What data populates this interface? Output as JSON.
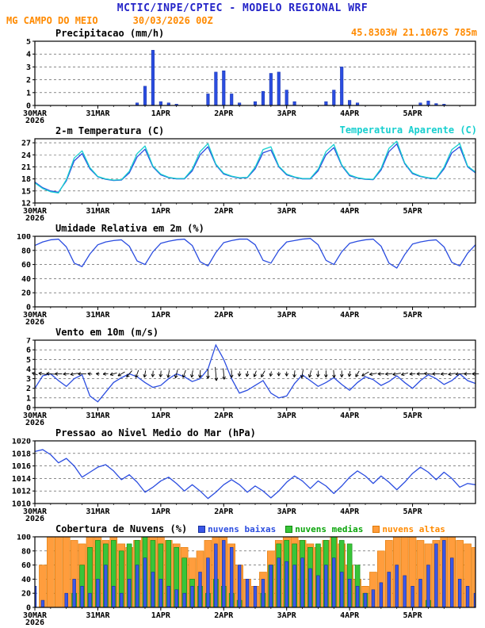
{
  "header": {
    "title": "MCTIC/INPE/CPTEC - MODELO REGIONAL WRF",
    "station": "MG CAMPO DO MEIO",
    "run": "30/03/2026 00Z",
    "location": "45.8303W 21.1067S 785m"
  },
  "colors": {
    "header_blue": "#2424c8",
    "orange": "#ff8a00",
    "blue": "#2b4de0",
    "blue_dark": "#1531a8",
    "cyan": "#17cfcf",
    "green_text": "#0aa50a",
    "low_fill": "#3a57e8",
    "low_stroke": "#16309c",
    "mid_fill": "#39c439",
    "mid_stroke": "#0d8a0d",
    "high_fill": "#ff9d3d",
    "high_stroke": "#e07800"
  },
  "x_axis": {
    "hours_total": 168,
    "step": 3,
    "ticks": [
      {
        "h": 0,
        "label": "30MAR",
        "sub": "2026"
      },
      {
        "h": 24,
        "label": "31MAR"
      },
      {
        "h": 48,
        "label": "1APR"
      },
      {
        "h": 72,
        "label": "2APR"
      },
      {
        "h": 96,
        "label": "3APR"
      },
      {
        "h": 120,
        "label": "4APR"
      },
      {
        "h": 144,
        "label": "5APR"
      }
    ]
  },
  "chart_data": [
    {
      "type": "bar",
      "title": "Precipitacao (mm/h)",
      "ylim": [
        0,
        5
      ],
      "yticks": [
        0,
        1,
        2,
        3,
        4,
        5
      ],
      "values": [
        0,
        0,
        0,
        0,
        0,
        0,
        0,
        0,
        0,
        0,
        0,
        0,
        0,
        0.2,
        1.5,
        4.3,
        0.3,
        0.2,
        0.1,
        0,
        0,
        0,
        0.9,
        2.6,
        2.7,
        0.9,
        0.2,
        0,
        0.3,
        1.1,
        2.5,
        2.6,
        1.2,
        0.3,
        0,
        0,
        0,
        0.3,
        1.2,
        3.0,
        0.4,
        0.2,
        0,
        0,
        0,
        0,
        0,
        0,
        0,
        0.2,
        0.35,
        0.15,
        0.1,
        0,
        0,
        0,
        0
      ]
    },
    {
      "type": "line",
      "title": "2-m Temperatura (C)",
      "ylim": [
        12,
        28
      ],
      "yticks": [
        12,
        15,
        18,
        21,
        24,
        27
      ],
      "series": [
        {
          "name": "2-m Temperatura (C)",
          "color_key": "blue",
          "values": [
            17.2,
            15.8,
            15.0,
            14.7,
            17.5,
            22.5,
            24.3,
            20.5,
            18.5,
            17.9,
            17.6,
            17.7,
            19.5,
            23.5,
            25.4,
            21.0,
            19.0,
            18.3,
            18.0,
            18.0,
            20.0,
            24.0,
            26.0,
            21.5,
            19.2,
            18.6,
            18.2,
            18.3,
            20.5,
            24.5,
            25.2,
            21.0,
            19.0,
            18.4,
            18.0,
            18.0,
            20.0,
            24.0,
            25.8,
            21.3,
            18.8,
            18.2,
            17.9,
            17.8,
            20.2,
            24.8,
            26.7,
            21.8,
            19.3,
            18.6,
            18.2,
            18.0,
            20.5,
            24.5,
            26.0,
            21.0,
            19.5
          ]
        },
        {
          "name": "Temperatura Aparente (C)",
          "color_key": "cyan",
          "values": [
            17.0,
            15.6,
            14.8,
            14.5,
            17.8,
            23.2,
            25.0,
            20.8,
            18.6,
            18.0,
            17.7,
            17.8,
            19.9,
            24.3,
            26.2,
            21.2,
            19.2,
            18.4,
            18.1,
            18.1,
            20.4,
            24.8,
            26.8,
            21.7,
            19.4,
            18.7,
            18.3,
            18.4,
            20.9,
            25.3,
            26.0,
            21.2,
            19.2,
            18.5,
            18.1,
            18.1,
            20.4,
            24.8,
            26.6,
            21.5,
            19.0,
            18.3,
            18.0,
            17.9,
            20.6,
            25.6,
            27.4,
            22.0,
            19.5,
            18.7,
            18.3,
            18.1,
            20.9,
            25.3,
            26.8,
            21.2,
            19.7
          ]
        }
      ]
    },
    {
      "type": "line",
      "title": "Umidade Relativa em 2m (%)",
      "ylim": [
        0,
        100
      ],
      "yticks": [
        0,
        20,
        40,
        60,
        80,
        100
      ],
      "series": [
        {
          "name": "Umidade Relativa",
          "color_key": "blue",
          "values": [
            87,
            92,
            95,
            96,
            85,
            62,
            57,
            75,
            88,
            92,
            94,
            95,
            86,
            65,
            60,
            78,
            90,
            93,
            95,
            96,
            87,
            64,
            58,
            77,
            91,
            94,
            96,
            96,
            88,
            66,
            62,
            80,
            92,
            94,
            96,
            97,
            88,
            66,
            60,
            78,
            90,
            93,
            95,
            96,
            86,
            62,
            55,
            74,
            89,
            92,
            94,
            95,
            85,
            63,
            58,
            76,
            88
          ]
        }
      ]
    },
    {
      "type": "wind",
      "title": "Vento em 10m (m/s)",
      "ylim": [
        0,
        7
      ],
      "yticks": [
        0,
        1,
        2,
        3,
        4,
        5,
        6,
        7
      ],
      "arrow_level": 3.5,
      "speed": [
        2.0,
        3.3,
        3.5,
        2.8,
        2.2,
        3.0,
        3.4,
        1.2,
        0.6,
        1.6,
        2.6,
        3.1,
        3.5,
        3.2,
        2.6,
        2.1,
        2.3,
        3.0,
        3.5,
        3.2,
        2.7,
        3.0,
        4.0,
        6.5,
        5.0,
        3.0,
        1.5,
        1.8,
        2.3,
        2.8,
        1.5,
        1.0,
        1.2,
        2.5,
        3.4,
        2.8,
        2.2,
        2.6,
        3.1,
        2.4,
        1.8,
        2.6,
        3.2,
        2.9,
        2.3,
        2.7,
        3.3,
        2.6,
        2.0,
        2.8,
        3.4,
        3.0,
        2.4,
        2.8,
        3.5,
        2.8,
        2.5
      ],
      "arrow_angles": [
        200,
        190,
        185,
        180,
        175,
        170,
        180,
        190,
        185,
        175,
        165,
        150,
        130,
        110,
        100,
        95,
        95,
        100,
        105,
        110,
        100,
        95,
        90,
        85,
        85,
        90,
        95,
        100,
        110,
        120,
        100,
        90,
        90,
        95,
        100,
        105,
        95,
        90,
        85,
        90,
        100,
        120,
        150,
        170,
        180,
        175,
        170,
        165,
        175,
        180,
        185,
        180,
        175,
        170,
        175,
        180,
        180
      ]
    },
    {
      "type": "line",
      "title": "Pressao ao Nivel Medio do Mar (hPa)",
      "ylim": [
        1010,
        1020
      ],
      "yticks": [
        1010,
        1012,
        1014,
        1016,
        1018,
        1020
      ],
      "series": [
        {
          "name": "Pressao",
          "color_key": "blue",
          "values": [
            1018.3,
            1018.6,
            1017.8,
            1016.5,
            1017.2,
            1016.0,
            1014.2,
            1015.0,
            1015.8,
            1016.2,
            1015.2,
            1013.8,
            1014.6,
            1013.4,
            1011.8,
            1012.6,
            1013.6,
            1014.2,
            1013.2,
            1012.0,
            1013.0,
            1012.0,
            1010.8,
            1011.8,
            1013.0,
            1013.8,
            1013.0,
            1011.8,
            1012.8,
            1012.0,
            1010.9,
            1012.0,
            1013.4,
            1014.4,
            1013.6,
            1012.4,
            1013.6,
            1012.8,
            1011.6,
            1012.8,
            1014.2,
            1015.2,
            1014.4,
            1013.2,
            1014.4,
            1013.4,
            1012.2,
            1013.4,
            1014.8,
            1015.8,
            1015.0,
            1013.8,
            1015.0,
            1014.0,
            1012.6,
            1013.2,
            1013.0
          ]
        }
      ]
    },
    {
      "type": "cloud",
      "title": "Cobertura de Nuvens (%)",
      "ylim": [
        0,
        100
      ],
      "yticks": [
        0,
        20,
        40,
        60,
        80,
        100
      ],
      "legend": [
        {
          "label": "nuvens baixas",
          "key": "low"
        },
        {
          "label": "nuvens medias",
          "key": "mid"
        },
        {
          "label": "nuvens altas",
          "key": "high"
        }
      ],
      "series": {
        "high": [
          0,
          60,
          100,
          100,
          100,
          95,
          90,
          100,
          100,
          95,
          100,
          90,
          85,
          95,
          100,
          100,
          100,
          95,
          90,
          85,
          70,
          80,
          95,
          100,
          100,
          90,
          60,
          40,
          30,
          50,
          80,
          95,
          100,
          100,
          95,
          90,
          85,
          95,
          100,
          90,
          60,
          40,
          30,
          50,
          80,
          95,
          100,
          100,
          100,
          95,
          90,
          95,
          100,
          100,
          95,
          90,
          85
        ],
        "mid": [
          0,
          0,
          0,
          0,
          0,
          20,
          60,
          85,
          95,
          90,
          95,
          80,
          90,
          95,
          100,
          95,
          90,
          95,
          85,
          70,
          40,
          30,
          20,
          40,
          30,
          20,
          10,
          0,
          0,
          20,
          60,
          90,
          95,
          90,
          95,
          85,
          90,
          95,
          100,
          95,
          90,
          60,
          20,
          0,
          0,
          0,
          0,
          0,
          0,
          0,
          10,
          0,
          0,
          0,
          0,
          0,
          0
        ],
        "low": [
          30,
          10,
          0,
          0,
          20,
          40,
          30,
          20,
          40,
          60,
          30,
          20,
          40,
          60,
          70,
          50,
          40,
          30,
          25,
          20,
          30,
          50,
          70,
          90,
          95,
          85,
          60,
          40,
          30,
          40,
          60,
          70,
          65,
          60,
          70,
          55,
          45,
          60,
          70,
          50,
          40,
          30,
          20,
          25,
          35,
          50,
          60,
          45,
          30,
          40,
          60,
          90,
          95,
          70,
          40,
          30,
          20
        ]
      }
    }
  ]
}
